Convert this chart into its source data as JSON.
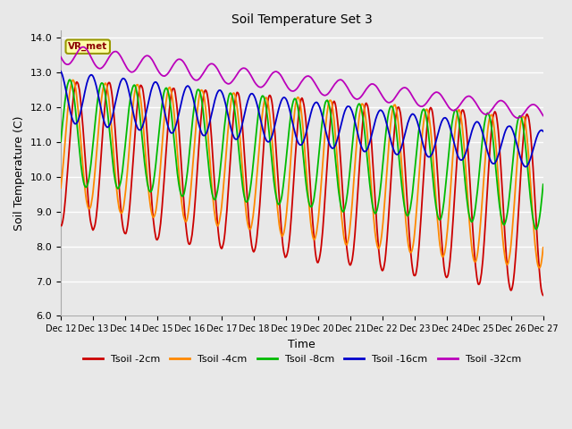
{
  "title": "Soil Temperature Set 3",
  "xlabel": "Time",
  "ylabel": "Soil Temperature (C)",
  "ylim": [
    6.0,
    14.2
  ],
  "xtick_labels": [
    "Dec 12",
    "Dec 13",
    "Dec 14",
    "Dec 15",
    "Dec 16",
    "Dec 17",
    "Dec 18",
    "Dec 19",
    "Dec 20",
    "Dec 21",
    "Dec 22",
    "Dec 23",
    "Dec 24",
    "Dec 25",
    "Dec 26",
    "Dec 27"
  ],
  "series_colors": {
    "Tsoil -2cm": "#cc0000",
    "Tsoil -4cm": "#ff8800",
    "Tsoil -8cm": "#00bb00",
    "Tsoil -16cm": "#0000cc",
    "Tsoil -32cm": "#bb00bb"
  },
  "legend_label": "VR_met",
  "bg_color": "#e8e8e8",
  "grid_color": "#ffffff",
  "n_days": 15,
  "pts_per_day": 48
}
